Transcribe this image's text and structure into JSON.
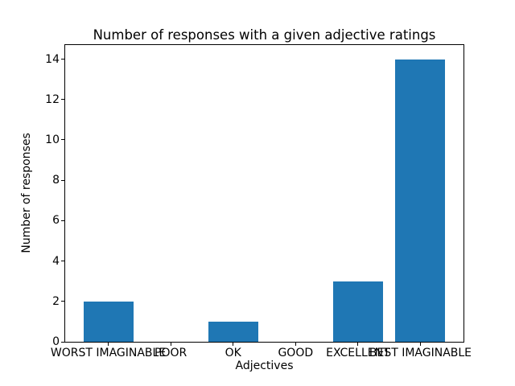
{
  "chart_data": {
    "type": "bar",
    "title": "Number of responses with a given adjective ratings",
    "xlabel": "Adjectives",
    "ylabel": "Number of responses",
    "categories": [
      "WORST IMAGINABLE",
      "POOR",
      "OK",
      "GOOD",
      "EXCELLENT",
      "BEST IMAGINABLE"
    ],
    "values": [
      2,
      0,
      1,
      0,
      3,
      14
    ],
    "yticks": [
      0,
      2,
      4,
      6,
      8,
      10,
      12,
      14
    ],
    "ylim": [
      0,
      14.7
    ],
    "bar_color": "#1f77b4",
    "axis_color": "#000000",
    "background_color": "#ffffff",
    "grid": false,
    "legend": "none"
  }
}
